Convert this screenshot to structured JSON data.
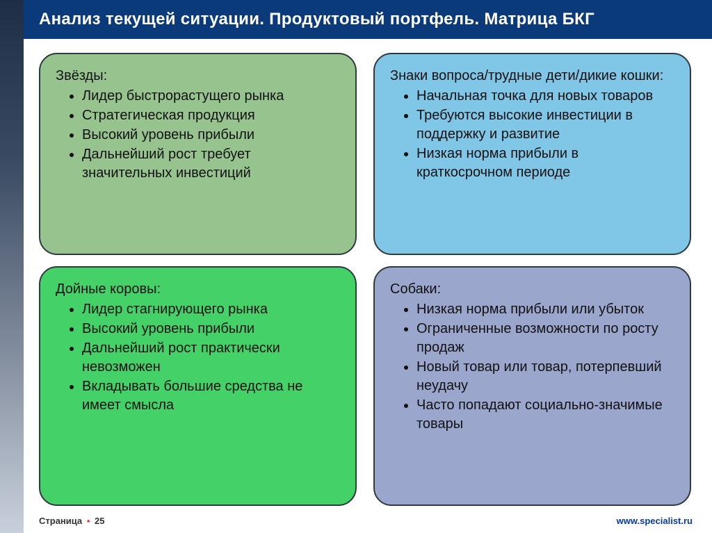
{
  "slide": {
    "title": "Анализ текущей ситуации. Продуктовый портфель. Матрица БКГ",
    "background_color": "#ffffff",
    "title_bar_color": "#0a3a7a",
    "title_text_color": "#ffffff",
    "title_fontsize": 24,
    "body_fontsize": 20,
    "card_border_radius": 26,
    "card_border_color": "#2e3a40",
    "grid": {
      "cols": 2,
      "rows": 2,
      "hgap": 24,
      "vgap": 16
    }
  },
  "cards": {
    "stars": {
      "heading": "Звёзды:",
      "fill_color": "#97c48e",
      "items": [
        "Лидер быстрорастущего рынка",
        "Стратегическая продукция",
        "Высокий уровень прибыли",
        "Дальнейший рост требует значительных инвестиций"
      ]
    },
    "qmarks": {
      "heading": "Знаки вопроса/трудные дети/дикие кошки:",
      "fill_color": "#7fc6e7",
      "items": [
        "Начальная точка для новых товаров",
        "Требуются высокие инвестиции в поддержку и развитие",
        "Низкая норма прибыли в краткосрочном периоде"
      ]
    },
    "cows": {
      "heading": "Дойные коровы:",
      "fill_color": "#44d268",
      "items": [
        "Лидер стагнирующего рынка",
        "Высокий уровень прибыли",
        "Дальнейший рост практически невозможен",
        "Вкладывать большие средства не имеет смысла"
      ]
    },
    "dogs": {
      "heading": "Собаки:",
      "fill_color": "#9aa6cc",
      "items": [
        "Низкая норма прибыли или убыток",
        "Ограниченные возможности по росту продаж",
        "Новый товар или товар, потерпевший неудачу",
        "Часто попадают социально-значимые товары"
      ]
    }
  },
  "footer": {
    "page_label_prefix": "Страница",
    "page_number": "25",
    "bullet_color": "#e03030",
    "url": "www.specialist.ru",
    "url_color": "#0a3a9a"
  }
}
